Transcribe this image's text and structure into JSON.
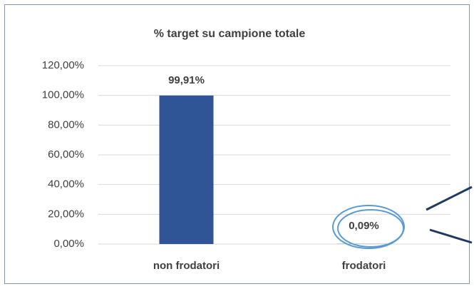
{
  "chart_data": {
    "type": "bar",
    "title": "% target su campione totale",
    "categories": [
      "non frodatori",
      "frodatori"
    ],
    "values": [
      99.91,
      0.09
    ],
    "value_labels": [
      "99,91%",
      "0,09%"
    ],
    "color": "#2f5597",
    "ylim": [
      0,
      120
    ],
    "yticks": [
      {
        "value": 0,
        "label": "0,00%"
      },
      {
        "value": 20,
        "label": "20,00%"
      },
      {
        "value": 40,
        "label": "40,00%"
      },
      {
        "value": 60,
        "label": "60,00%"
      },
      {
        "value": 80,
        "label": "80,00%"
      },
      {
        "value": 100,
        "label": "100,00%"
      },
      {
        "value": 120,
        "label": "120,00%"
      }
    ],
    "grid": true
  }
}
